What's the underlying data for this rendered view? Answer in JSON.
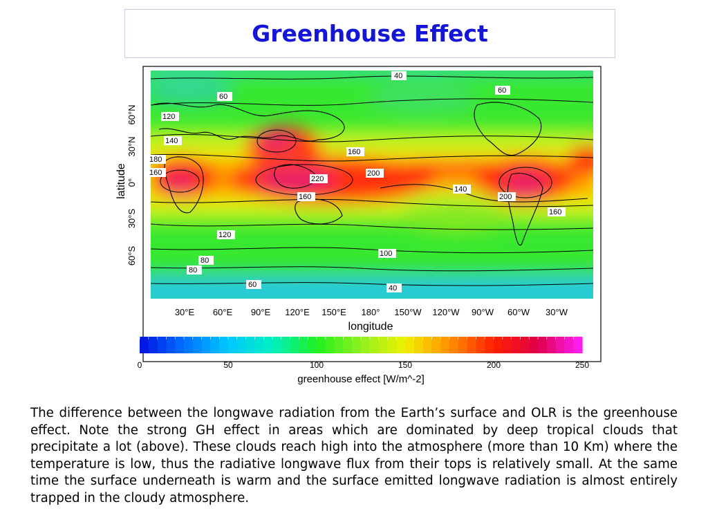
{
  "slide": {
    "title": "Greenhouse Effect",
    "caption": "The difference between the longwave radiation from the Earth’s surface and OLR is the greenhouse effect. Note the strong GH effect in areas which are dominated by deep tropical clouds that precipitate a lot (above). These clouds reach high into the atmosphere (more than 10 Km) where the temperature is low, thus the radiative longwave flux from their tops is relatively small. At the same time the surface underneath is warm and the surface emitted longwave radiation is almost entirely trapped in the cloudy atmosphere."
  },
  "chart_data": {
    "type": "heatmap",
    "xlabel": "longitude",
    "ylabel": "latitude",
    "x_ticks": [
      "30°E",
      "60°E",
      "90°E",
      "120°E",
      "150°E",
      "180°",
      "150°W",
      "120°W",
      "90°W",
      "60°W",
      "30°W"
    ],
    "y_ticks": [
      "60°N",
      "30°N",
      "0°",
      "30°S",
      "60°S"
    ],
    "contour_labels": [
      "40",
      "60",
      "60",
      "120",
      "140",
      "160",
      "180",
      "160",
      "200",
      "220",
      "160",
      "140",
      "200",
      "160",
      "120",
      "100",
      "80",
      "80",
      "60",
      "40"
    ],
    "colorbar": {
      "label": "greenhouse effect [W/m^-2]",
      "ticks": [
        "0",
        "50",
        "100",
        "150",
        "200",
        "250"
      ],
      "range": [
        0,
        250
      ],
      "colors": [
        "#0010e0",
        "#0070ff",
        "#00c8ff",
        "#00f0c0",
        "#20f020",
        "#90f020",
        "#f0f000",
        "#ff9000",
        "#ff2000",
        "#e0004a",
        "#ff20ff"
      ]
    }
  }
}
